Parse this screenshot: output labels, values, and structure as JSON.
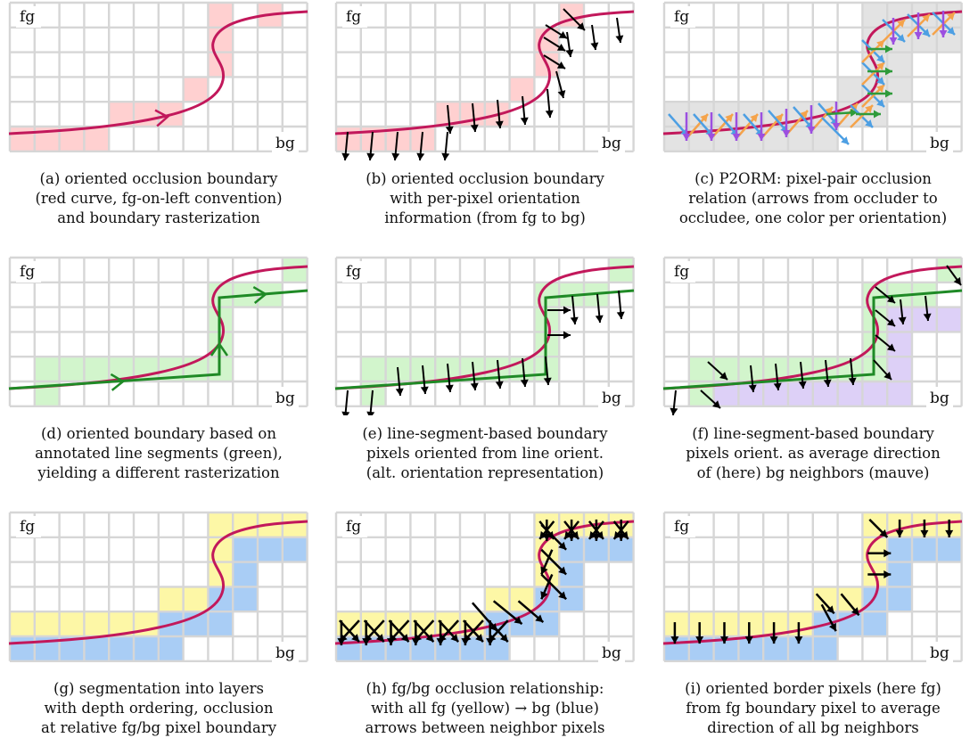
{
  "labels": {
    "fg": "fg",
    "bg": "bg"
  },
  "colors": {
    "grid_line": "#d6d6d6",
    "boundary_curve": "#c2185b",
    "pink_pixel": "#ffd0d0",
    "green_pixel": "#d2f5cc",
    "green_segment": "#1f8a26",
    "mauve_pixel": "#ddd0f7",
    "yellow_pixel": "#fdf7a6",
    "blue_pixel": "#a9cdf5",
    "grey_pixel": "#e3e3e3",
    "p2orm_blue": "#4d9fe3",
    "p2orm_orange": "#f5a34a",
    "p2orm_purple": "#9c4fe0",
    "p2orm_green": "#2e9b3a"
  },
  "panels": [
    {
      "id": "a",
      "caption": [
        "(a) oriented occlusion boundary",
        "(red curve, fg-on-left convention)",
        "and boundary rasterization"
      ]
    },
    {
      "id": "b",
      "caption": [
        "(b) oriented occlusion boundary",
        "with per-pixel orientation",
        "information (from fg to bg)"
      ]
    },
    {
      "id": "c",
      "caption": [
        "(c) P2ORM: pixel-pair occlusion",
        "relation (arrows from occluder to",
        "occludee, one color per orientation)"
      ]
    },
    {
      "id": "d",
      "caption": [
        "(d) oriented boundary based on",
        "annotated line segments (green),",
        "yielding a different rasterization"
      ]
    },
    {
      "id": "e",
      "caption": [
        "(e) line-segment-based boundary",
        "pixels oriented from line orient.",
        "(alt. orientation representation)"
      ]
    },
    {
      "id": "f",
      "caption": [
        "(f) line-segment-based boundary",
        "pixels orient. as average direction",
        "of (here) bg neighbors (mauve)"
      ]
    },
    {
      "id": "g",
      "caption": [
        "(g) segmentation into layers",
        "with depth ordering, occlusion",
        "at relative fg/bg pixel boundary"
      ]
    },
    {
      "id": "h",
      "caption": [
        "(h) fg/bg occlusion relationship:",
        "with all fg (yellow) → bg (blue)",
        "arrows between neighbor pixels"
      ]
    },
    {
      "id": "i",
      "caption": [
        "(i) oriented border pixels (here fg)",
        "from fg boundary pixel to average",
        "direction of all bg neighbors"
      ]
    }
  ]
}
